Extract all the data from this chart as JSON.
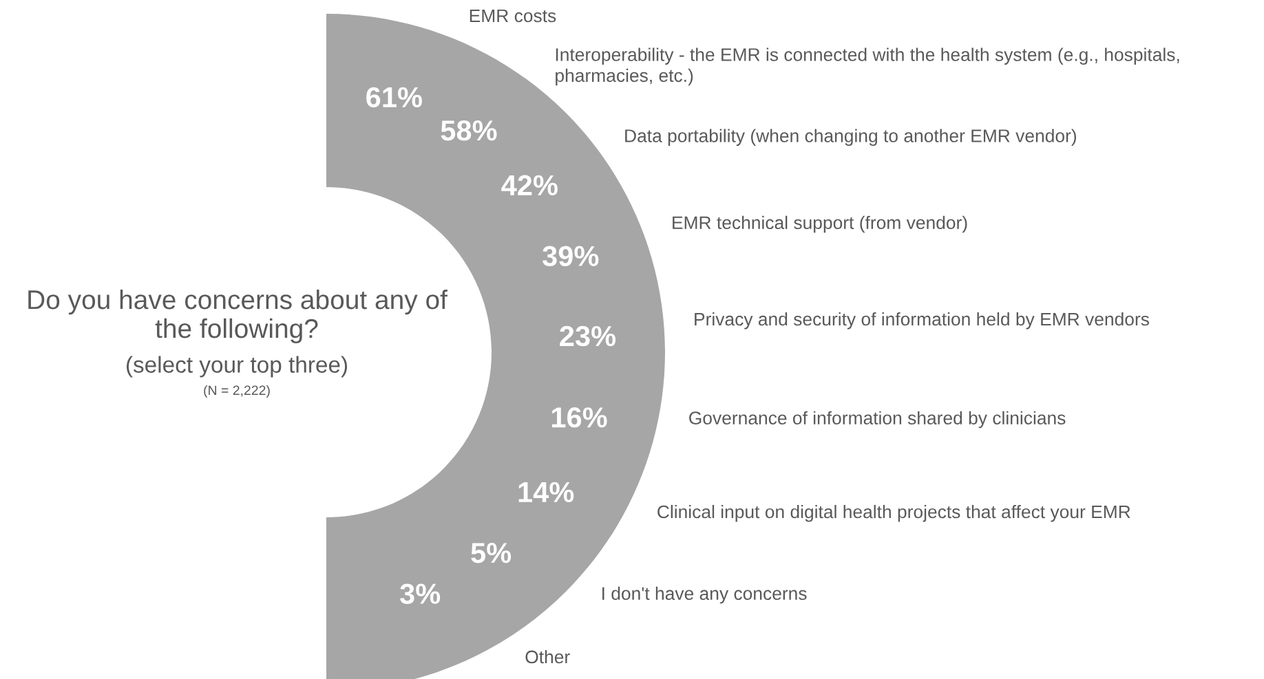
{
  "chart_data": {
    "type": "other",
    "title": "Do you have concerns about any of\nthe following?",
    "subtitle": "(select your top three)",
    "annotations": [
      "(N = 2,222)"
    ],
    "categories": [
      "EMR costs",
      "Interoperability - the EMR is connected with the health system (e.g., hospitals,\npharmacies, etc.)",
      "Data portability (when changing to another EMR vendor)",
      "EMR technical support (from vendor)",
      "Privacy and security of information held by EMR vendors",
      "Governance of information shared by clinicians",
      "Clinical input on digital health projects that affect your EMR",
      "I don't have any concerns",
      "Other"
    ],
    "values": [
      61,
      58,
      42,
      39,
      23,
      16,
      14,
      5,
      3
    ],
    "value_labels": [
      "61%",
      "58%",
      "42%",
      "39%",
      "23%",
      "16%",
      "14%",
      "5%",
      "3%"
    ],
    "color": "#a6a6a7"
  }
}
